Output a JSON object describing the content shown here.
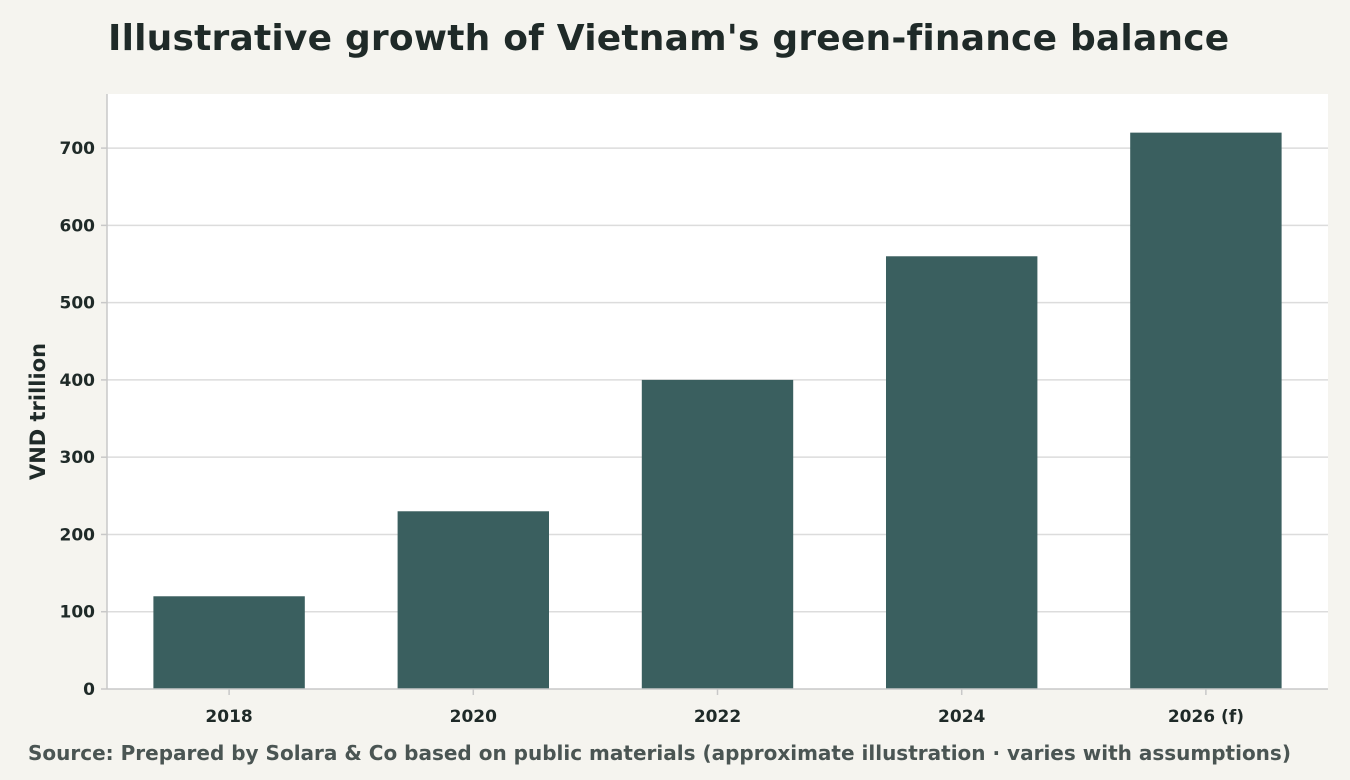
{
  "header": {
    "title": "Illustrative growth of Vietnam's green-finance balance"
  },
  "footer": {
    "source": "Source: Prepared by Solara & Co based on public materials (approximate illustration · varies with assumptions)"
  },
  "chart_data": {
    "type": "bar",
    "title": "Illustrative growth of Vietnam's green-finance balance",
    "xlabel": "",
    "ylabel": "VND trillion",
    "categories": [
      "2018",
      "2020",
      "2022",
      "2024",
      "2026 (f)"
    ],
    "values": [
      120,
      230,
      400,
      560,
      720
    ],
    "ylim": [
      0,
      770
    ],
    "yticks": [
      0,
      100,
      200,
      300,
      400,
      500,
      600,
      700
    ],
    "grid": true,
    "legend": "none",
    "colors": {
      "bar": "#3a5f5f",
      "plot_background": "#ffffff",
      "gridline": "#dcdcdc",
      "axis": "#c8c8c8"
    }
  }
}
